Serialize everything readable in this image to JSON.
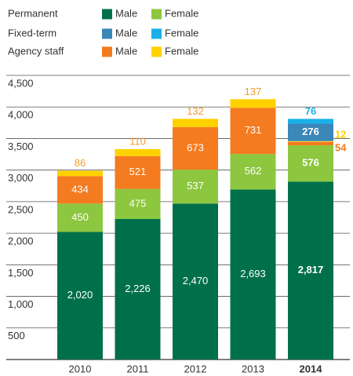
{
  "chart_data": {
    "type": "stacked-bar",
    "categories": [
      "2010",
      "2011",
      "2012",
      "2013",
      "2014"
    ],
    "groups": [
      {
        "name": "Permanent",
        "series": [
          {
            "name": "Male",
            "color": "#00704a",
            "values": [
              2020,
              2226,
              2470,
              2693,
              2817
            ],
            "value_labels": [
              "2,020",
              "2,226",
              "2,470",
              "2,693",
              "2,817"
            ]
          },
          {
            "name": "Female",
            "color": "#8dc63f",
            "values": [
              450,
              475,
              537,
              562,
              576
            ]
          }
        ]
      },
      {
        "name": "Fixed-term",
        "series": [
          {
            "name": "Male",
            "color": "#3a87b8",
            "values": [
              null,
              null,
              null,
              null,
              276
            ]
          },
          {
            "name": "Female",
            "color": "#1ab0e8",
            "values": [
              null,
              null,
              null,
              null,
              76
            ]
          }
        ]
      },
      {
        "name": "Agency staff",
        "series": [
          {
            "name": "Male",
            "color": "#f47b20",
            "values": [
              434,
              521,
              673,
              731,
              54
            ]
          },
          {
            "name": "Female",
            "color": "#ffd100",
            "label_color": "#f39a2a",
            "values": [
              86,
              110,
              132,
              137,
              12
            ]
          }
        ]
      }
    ],
    "ylim": [
      0,
      4500
    ],
    "yticks": [
      500,
      {
        "value": 1000,
        "label": "1,000"
      },
      {
        "value": 1500,
        "label": "1,500"
      },
      {
        "value": 2000,
        "label": "2,000"
      },
      {
        "value": 2500,
        "label": "2,500"
      },
      {
        "value": 3000,
        "label": "3,000"
      },
      {
        "value": 3500,
        "label": "3,500"
      },
      {
        "value": 4000,
        "label": "4,000"
      },
      {
        "value": 4500,
        "label": "4,500"
      }
    ],
    "grid": true
  }
}
